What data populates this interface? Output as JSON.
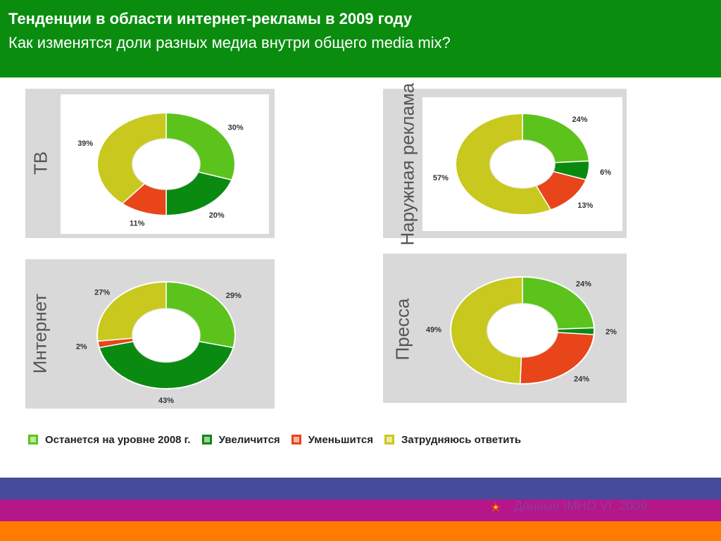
{
  "header": {
    "title": "Тенденции в области интернет-рекламы в 2009 году",
    "subtitle": "Как изменятся доли разных медиа внутри общего media mix?"
  },
  "colors": {
    "header_bg": "#0a8d0f",
    "light_green": "#5cc31c",
    "dark_green": "#0b8a12",
    "red": "#e8451a",
    "yellow": "#c8c81e"
  },
  "legend": [
    {
      "label": "Останется на уровне 2008 г.",
      "color": "#5cc31c"
    },
    {
      "label": "Увеличится",
      "color": "#0b8a12"
    },
    {
      "label": "Уменьшится",
      "color": "#e8451a"
    },
    {
      "label": "Затрудняюсь ответить",
      "color": "#c8c81e"
    }
  ],
  "chart_data": [
    {
      "type": "pie",
      "donut": true,
      "title": "ТВ",
      "categories": [
        "Останется на уровне 2008 г.",
        "Увеличится",
        "Уменьшится",
        "Затрудняюсь ответить"
      ],
      "values": [
        30,
        20,
        11,
        39
      ],
      "labels": [
        "30%",
        "20%",
        "11%",
        "39%"
      ]
    },
    {
      "type": "pie",
      "donut": true,
      "title": "Наружная реклама",
      "categories": [
        "Останется на уровне 2008 г.",
        "Увеличится",
        "Уменьшится",
        "Затрудняюсь ответить"
      ],
      "values": [
        24,
        6,
        13,
        57
      ],
      "labels": [
        "24%",
        "6%",
        "13%",
        "57%"
      ]
    },
    {
      "type": "pie",
      "donut": true,
      "title": "Интернет",
      "categories": [
        "Останется на уровне 2008 г.",
        "Увеличится",
        "Уменьшится",
        "Затрудняюсь ответить"
      ],
      "values": [
        29,
        43,
        2,
        27
      ],
      "labels": [
        "29%",
        "43%",
        "2%",
        "27%"
      ]
    },
    {
      "type": "pie",
      "donut": true,
      "title": "Пресса",
      "categories": [
        "Останется на уровне 2008 г.",
        "Увеличится",
        "Уменьшится",
        "Затрудняюсь ответить"
      ],
      "values": [
        24,
        2,
        24,
        49
      ],
      "labels": [
        "24%",
        "2%",
        "24%",
        "49%"
      ]
    }
  ],
  "footer": {
    "source": "Данные IMHO VI, 2009"
  }
}
